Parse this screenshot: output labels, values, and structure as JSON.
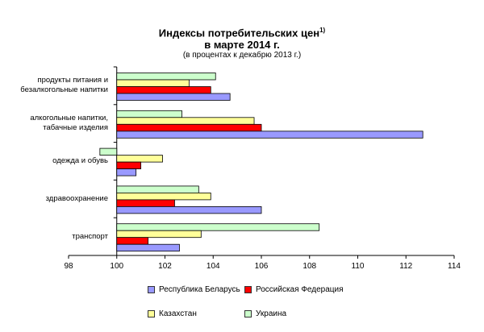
{
  "chart_data": {
    "type": "bar",
    "orientation": "horizontal",
    "title_line1": "Индексы потребительских цен",
    "title_sup": "1)",
    "title_line2": "в марте 2014 г.",
    "subtitle": "(в процентах к декабрю 2013 г.)",
    "categories": [
      [
        "продукты питания и",
        "безалкогольные напитки"
      ],
      [
        "алкогольные напитки,",
        "табачные изделия"
      ],
      [
        "одежда и обувь"
      ],
      [
        "здравоохранение"
      ],
      [
        "транспорт"
      ]
    ],
    "series": [
      {
        "name": "Украина",
        "color": "#ccffcc",
        "values": [
          104.1,
          102.7,
          99.3,
          103.4,
          108.4
        ]
      },
      {
        "name": "Казахстан",
        "color": "#ffff99",
        "values": [
          103.0,
          105.7,
          101.9,
          103.9,
          103.5
        ]
      },
      {
        "name": "Российская Федерация",
        "color": "#ff0000",
        "values": [
          103.9,
          106.0,
          101.0,
          102.4,
          101.3
        ]
      },
      {
        "name": "Республика Беларусь",
        "color": "#9999ff",
        "values": [
          104.7,
          112.7,
          100.8,
          106.0,
          102.6
        ]
      }
    ],
    "xlim": [
      98,
      114
    ],
    "xticks": [
      98,
      100,
      102,
      104,
      106,
      108,
      110,
      112,
      114
    ],
    "baseline": 100,
    "legend": {
      "placement": "bottom",
      "order": [
        "Республика Беларусь",
        "Российская Федерация",
        "Казахстан",
        "Украина"
      ]
    }
  }
}
